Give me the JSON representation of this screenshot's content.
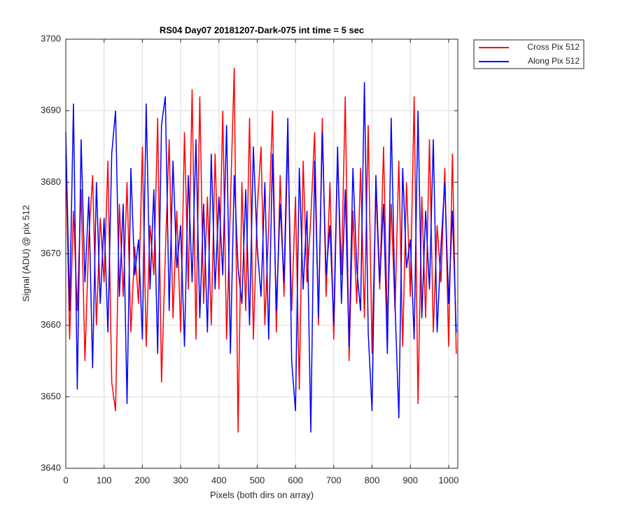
{
  "chart_data": {
    "type": "line",
    "title": "RS04 Day07 20181207-Dark-075 int time = 5 sec",
    "x_label": "Pixels (both dirs on array)",
    "y_label": "Signal (ADU) @ pix 512",
    "x": [
      0,
      10,
      20,
      30,
      40,
      50,
      60,
      70,
      80,
      90,
      100,
      110,
      120,
      130,
      140,
      150,
      160,
      170,
      180,
      190,
      200,
      210,
      220,
      230,
      240,
      250,
      260,
      270,
      280,
      290,
      300,
      310,
      320,
      330,
      340,
      350,
      360,
      370,
      380,
      390,
      400,
      410,
      420,
      430,
      440,
      450,
      460,
      470,
      480,
      490,
      500,
      510,
      520,
      530,
      540,
      550,
      560,
      570,
      580,
      590,
      600,
      610,
      620,
      630,
      640,
      650,
      660,
      670,
      680,
      690,
      700,
      710,
      720,
      730,
      740,
      750,
      760,
      770,
      780,
      790,
      800,
      810,
      820,
      830,
      840,
      850,
      860,
      870,
      880,
      890,
      900,
      910,
      920,
      930,
      940,
      950,
      960,
      970,
      980,
      990,
      1000,
      1010,
      1020
    ],
    "series": [
      {
        "name": "Cross Pix 512",
        "color": "#ff0000",
        "values": [
          3684,
          3658,
          3676,
          3662,
          3679,
          3655,
          3672,
          3681,
          3660,
          3675,
          3666,
          3683,
          3652,
          3648,
          3677,
          3664,
          3680,
          3659,
          3671,
          3663,
          3685,
          3657,
          3674,
          3667,
          3689,
          3652,
          3670,
          3686,
          3661,
          3676,
          3659,
          3687,
          3665,
          3693,
          3658,
          3692,
          3663,
          3678,
          3660,
          3684,
          3665,
          3690,
          3658,
          3677,
          3696,
          3645,
          3680,
          3662,
          3689,
          3658,
          3676,
          3685,
          3660,
          3674,
          3690,
          3659,
          3681,
          3664,
          3686,
          3662,
          3678,
          3651,
          3683,
          3666,
          3675,
          3687,
          3660,
          3689,
          3664,
          3680,
          3658,
          3684,
          3667,
          3692,
          3655,
          3676,
          3663,
          3682,
          3661,
          3688,
          3656,
          3679,
          3665,
          3685,
          3660,
          3677,
          3662,
          3683,
          3657,
          3680,
          3664,
          3692,
          3649,
          3678,
          3661,
          3686,
          3659,
          3674,
          3666,
          3682,
          3657,
          3684,
          3656
        ]
      },
      {
        "name": "Along Pix 512",
        "color": "#0000ff",
        "values": [
          3687,
          3662,
          3691,
          3651,
          3686,
          3666,
          3678,
          3654,
          3680,
          3663,
          3675,
          3659,
          3684,
          3690,
          3664,
          3677,
          3649,
          3682,
          3667,
          3672,
          3658,
          3691,
          3665,
          3679,
          3656,
          3688,
          3692,
          3662,
          3683,
          3668,
          3674,
          3657,
          3681,
          3666,
          3686,
          3661,
          3677,
          3659,
          3684,
          3665,
          3678,
          3667,
          3688,
          3656,
          3681,
          3668,
          3663,
          3679,
          3660,
          3685,
          3671,
          3664,
          3680,
          3658,
          3684,
          3662,
          3677,
          3666,
          3689,
          3655,
          3648,
          3682,
          3665,
          3676,
          3645,
          3683,
          3661,
          3687,
          3667,
          3674,
          3660,
          3685,
          3663,
          3679,
          3657,
          3682,
          3668,
          3662,
          3694,
          3659,
          3648,
          3681,
          3666,
          3677,
          3656,
          3689,
          3663,
          3647,
          3682,
          3668,
          3672,
          3658,
          3690,
          3661,
          3676,
          3665,
          3686,
          3659,
          3671,
          3680,
          3663,
          3676,
          3659
        ]
      }
    ],
    "xlim": [
      0,
      1024
    ],
    "xticks": [
      0,
      100,
      200,
      300,
      400,
      500,
      600,
      700,
      800,
      900,
      1000
    ],
    "ylim": [
      3640,
      3700
    ],
    "yticks": [
      3640,
      3650,
      3660,
      3670,
      3680,
      3690,
      3700
    ],
    "grid": true,
    "legend": "outside-top-right"
  }
}
